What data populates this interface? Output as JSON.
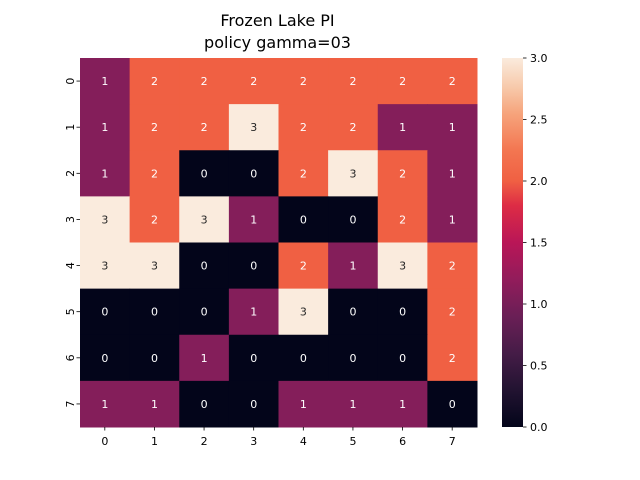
{
  "chart_data": {
    "type": "heatmap",
    "title": "Frozen Lake PI",
    "subtitle": "policy gamma=03",
    "xlabel": "",
    "ylabel": "",
    "x_categories": [
      "0",
      "1",
      "2",
      "3",
      "4",
      "5",
      "6",
      "7"
    ],
    "y_categories": [
      "0",
      "1",
      "2",
      "3",
      "4",
      "5",
      "6",
      "7"
    ],
    "values": [
      [
        1,
        2,
        2,
        2,
        2,
        2,
        2,
        2
      ],
      [
        1,
        2,
        2,
        3,
        2,
        2,
        1,
        1
      ],
      [
        1,
        2,
        0,
        0,
        2,
        3,
        2,
        1
      ],
      [
        3,
        2,
        3,
        1,
        0,
        0,
        2,
        1
      ],
      [
        3,
        3,
        0,
        0,
        2,
        1,
        3,
        2
      ],
      [
        0,
        0,
        0,
        1,
        3,
        0,
        0,
        2
      ],
      [
        0,
        0,
        1,
        0,
        0,
        0,
        0,
        2
      ],
      [
        1,
        1,
        0,
        0,
        1,
        1,
        1,
        0
      ]
    ],
    "colorbar": {
      "range": [
        0.0,
        3.0
      ],
      "ticks": [
        "0.0",
        "0.5",
        "1.0",
        "1.5",
        "2.0",
        "2.5",
        "3.0"
      ],
      "colormap": "rocket"
    },
    "value_colors": {
      "0": "#03051a",
      "1": "#841e5a",
      "2": "#f06043",
      "3": "#faebdd"
    },
    "annotation_colors": {
      "dark": "#ffffff",
      "light": "#262626"
    }
  }
}
